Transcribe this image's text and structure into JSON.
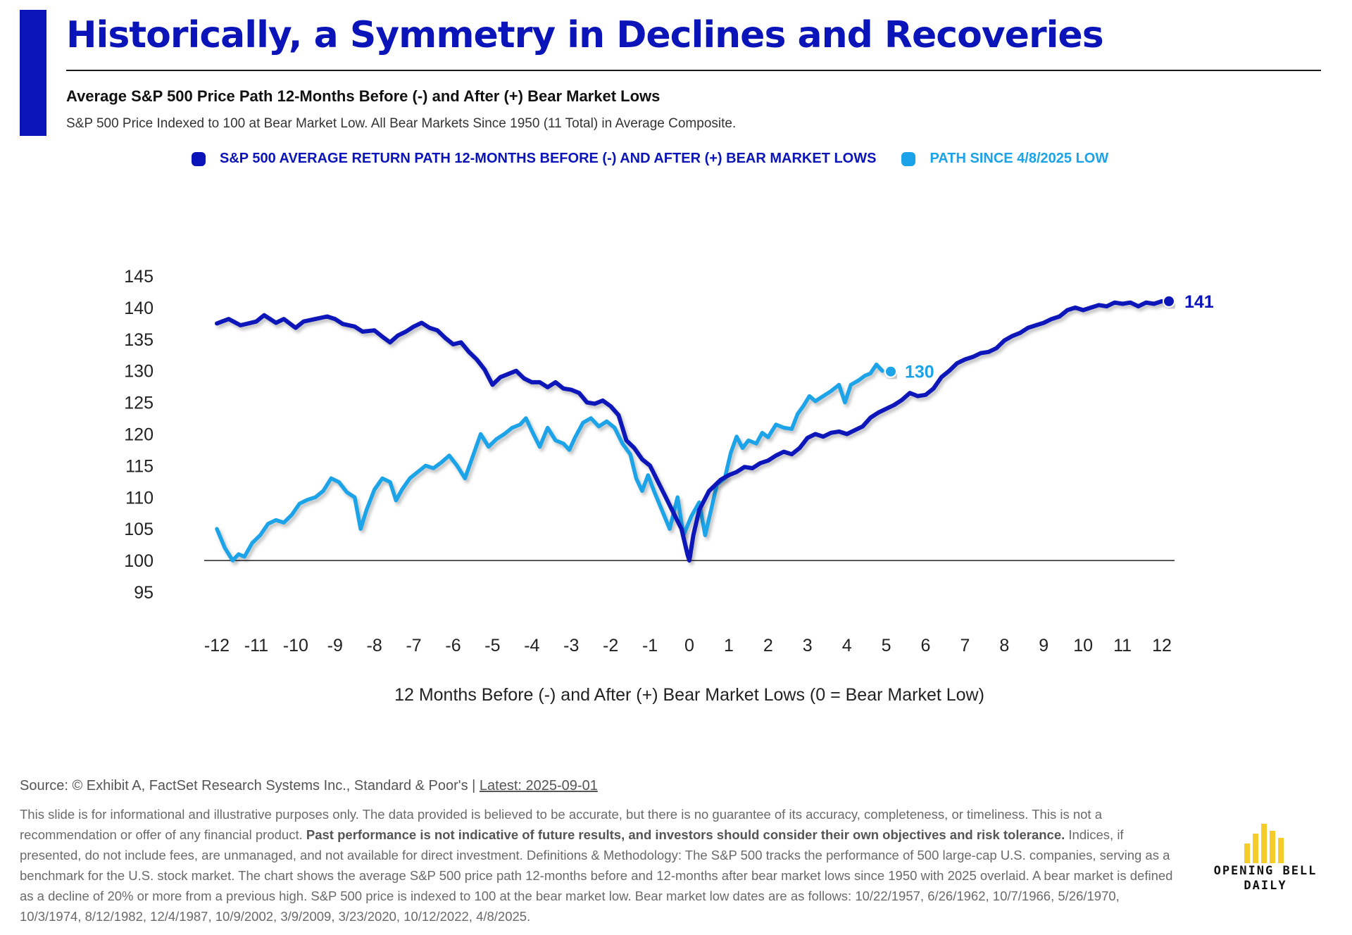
{
  "header": {
    "title": "Historically, a Symmetry in Declines and Recoveries",
    "subtitle": "Average S&P 500 Price Path 12-Months Before (-) and After (+) Bear Market Lows",
    "note": "S&P 500 Price Indexed to 100 at Bear Market Low. All Bear Markets Since 1950 (11 Total) in Average Composite."
  },
  "legend": {
    "average_label": "S&P 500 AVERAGE RETURN PATH 12-MONTHS BEFORE (-) AND AFTER (+) BEAR MARKET LOWS",
    "current_label": "PATH SINCE 4/8/2025 LOW"
  },
  "colors": {
    "accent": "#0a14b8",
    "average_series": "#0a14b8",
    "current_series": "#1aa3e8"
  },
  "chart_data": {
    "type": "line",
    "title": "",
    "xlabel": "12 Months Before (-) and After (+) Bear Market Lows (0 = Bear Market Low)",
    "ylabel": "",
    "xlim": [
      -12,
      12
    ],
    "ylim": [
      95,
      145
    ],
    "x_ticks": [
      "-12",
      "-11",
      "-10",
      "-9",
      "-8",
      "-7",
      "-6",
      "-5",
      "-4",
      "-3",
      "-2",
      "-1",
      "0",
      "1",
      "2",
      "3",
      "4",
      "5",
      "6",
      "7",
      "8",
      "9",
      "10",
      "11",
      "12"
    ],
    "y_ticks": [
      "145",
      "140",
      "135",
      "130",
      "125",
      "120",
      "115",
      "110",
      "105",
      "100",
      "95"
    ],
    "reference_line": 100,
    "grid": false,
    "legend_position": "top",
    "series": [
      {
        "name": "S&P 500 AVERAGE RETURN PATH 12-MONTHS BEFORE (-) AND AFTER (+) BEAR MARKET LOWS",
        "color": "#0a14b8",
        "end_label": "141",
        "points": [
          [
            -12,
            137.5
          ],
          [
            -11.7,
            138.2
          ],
          [
            -11.4,
            137.2
          ],
          [
            -11,
            137.8
          ],
          [
            -10.8,
            138.8
          ],
          [
            -10.5,
            137.6
          ],
          [
            -10.3,
            138.2
          ],
          [
            -10,
            136.8
          ],
          [
            -9.8,
            137.8
          ],
          [
            -9.5,
            138.2
          ],
          [
            -9.2,
            138.6
          ],
          [
            -9,
            138.2
          ],
          [
            -8.8,
            137.4
          ],
          [
            -8.5,
            137.0
          ],
          [
            -8.3,
            136.2
          ],
          [
            -8,
            136.4
          ],
          [
            -7.8,
            135.4
          ],
          [
            -7.6,
            134.5
          ],
          [
            -7.4,
            135.6
          ],
          [
            -7.2,
            136.2
          ],
          [
            -7,
            137.0
          ],
          [
            -6.8,
            137.6
          ],
          [
            -6.6,
            136.8
          ],
          [
            -6.4,
            136.4
          ],
          [
            -6.2,
            135.2
          ],
          [
            -6,
            134.2
          ],
          [
            -5.8,
            134.5
          ],
          [
            -5.6,
            133.0
          ],
          [
            -5.4,
            131.8
          ],
          [
            -5.2,
            130.2
          ],
          [
            -5,
            127.8
          ],
          [
            -4.8,
            129.0
          ],
          [
            -4.6,
            129.5
          ],
          [
            -4.4,
            130.0
          ],
          [
            -4.2,
            128.8
          ],
          [
            -4,
            128.2
          ],
          [
            -3.8,
            128.2
          ],
          [
            -3.6,
            127.4
          ],
          [
            -3.4,
            128.2
          ],
          [
            -3.2,
            127.2
          ],
          [
            -3,
            127.0
          ],
          [
            -2.8,
            126.5
          ],
          [
            -2.6,
            125.0
          ],
          [
            -2.4,
            124.8
          ],
          [
            -2.2,
            125.3
          ],
          [
            -2,
            124.4
          ],
          [
            -1.8,
            123.0
          ],
          [
            -1.6,
            119.0
          ],
          [
            -1.4,
            117.8
          ],
          [
            -1.2,
            116.0
          ],
          [
            -1,
            115.0
          ],
          [
            -0.8,
            112.5
          ],
          [
            -0.6,
            110.0
          ],
          [
            -0.4,
            107.5
          ],
          [
            -0.2,
            105.0
          ],
          [
            -0.05,
            101.0
          ],
          [
            0,
            100
          ],
          [
            0.1,
            104.0
          ],
          [
            0.25,
            108.0
          ],
          [
            0.5,
            111.0
          ],
          [
            0.8,
            112.8
          ],
          [
            1,
            113.5
          ],
          [
            1.2,
            114.0
          ],
          [
            1.4,
            114.8
          ],
          [
            1.6,
            114.6
          ],
          [
            1.8,
            115.4
          ],
          [
            2,
            115.8
          ],
          [
            2.2,
            116.6
          ],
          [
            2.4,
            117.2
          ],
          [
            2.6,
            116.8
          ],
          [
            2.8,
            117.8
          ],
          [
            3,
            119.4
          ],
          [
            3.2,
            120.0
          ],
          [
            3.4,
            119.6
          ],
          [
            3.6,
            120.2
          ],
          [
            3.8,
            120.4
          ],
          [
            4,
            120.0
          ],
          [
            4.2,
            120.6
          ],
          [
            4.4,
            121.2
          ],
          [
            4.6,
            122.6
          ],
          [
            4.8,
            123.4
          ],
          [
            5,
            124.0
          ],
          [
            5.2,
            124.6
          ],
          [
            5.4,
            125.4
          ],
          [
            5.6,
            126.5
          ],
          [
            5.8,
            126.0
          ],
          [
            6,
            126.2
          ],
          [
            6.2,
            127.2
          ],
          [
            6.4,
            129.0
          ],
          [
            6.6,
            130.0
          ],
          [
            6.8,
            131.2
          ],
          [
            7,
            131.8
          ],
          [
            7.2,
            132.2
          ],
          [
            7.4,
            132.8
          ],
          [
            7.6,
            133.0
          ],
          [
            7.8,
            133.6
          ],
          [
            8,
            134.8
          ],
          [
            8.2,
            135.5
          ],
          [
            8.4,
            136.0
          ],
          [
            8.6,
            136.8
          ],
          [
            8.8,
            137.2
          ],
          [
            9,
            137.6
          ],
          [
            9.2,
            138.2
          ],
          [
            9.4,
            138.6
          ],
          [
            9.6,
            139.6
          ],
          [
            9.8,
            140.0
          ],
          [
            10,
            139.6
          ],
          [
            10.2,
            140.0
          ],
          [
            10.4,
            140.4
          ],
          [
            10.6,
            140.2
          ],
          [
            10.8,
            140.8
          ],
          [
            11,
            140.6
          ],
          [
            11.2,
            140.8
          ],
          [
            11.4,
            140.2
          ],
          [
            11.6,
            140.8
          ],
          [
            11.8,
            140.6
          ],
          [
            12,
            141
          ]
        ]
      },
      {
        "name": "PATH SINCE 4/8/2025 LOW",
        "color": "#1aa3e8",
        "end_label": "130",
        "points": [
          [
            -12,
            105.0
          ],
          [
            -11.8,
            102.0
          ],
          [
            -11.6,
            100.0
          ],
          [
            -11.45,
            101.0
          ],
          [
            -11.3,
            100.6
          ],
          [
            -11.1,
            102.8
          ],
          [
            -10.9,
            104.0
          ],
          [
            -10.7,
            105.8
          ],
          [
            -10.5,
            106.4
          ],
          [
            -10.3,
            106.0
          ],
          [
            -10.1,
            107.2
          ],
          [
            -9.9,
            109.0
          ],
          [
            -9.7,
            109.6
          ],
          [
            -9.5,
            110.0
          ],
          [
            -9.3,
            111.0
          ],
          [
            -9.1,
            113.0
          ],
          [
            -8.9,
            112.4
          ],
          [
            -8.7,
            110.8
          ],
          [
            -8.5,
            110.0
          ],
          [
            -8.35,
            105.0
          ],
          [
            -8.2,
            108.0
          ],
          [
            -8.0,
            111.2
          ],
          [
            -7.8,
            113.0
          ],
          [
            -7.6,
            112.4
          ],
          [
            -7.45,
            109.5
          ],
          [
            -7.3,
            111.2
          ],
          [
            -7.1,
            113.0
          ],
          [
            -6.9,
            114.0
          ],
          [
            -6.7,
            115.0
          ],
          [
            -6.5,
            114.6
          ],
          [
            -6.3,
            115.5
          ],
          [
            -6.1,
            116.6
          ],
          [
            -5.9,
            115.0
          ],
          [
            -5.7,
            113.0
          ],
          [
            -5.5,
            116.5
          ],
          [
            -5.3,
            120.0
          ],
          [
            -5.1,
            118.0
          ],
          [
            -4.9,
            119.2
          ],
          [
            -4.7,
            120.0
          ],
          [
            -4.5,
            121.0
          ],
          [
            -4.3,
            121.5
          ],
          [
            -4.15,
            122.5
          ],
          [
            -4.0,
            120.5
          ],
          [
            -3.8,
            118.0
          ],
          [
            -3.6,
            121.0
          ],
          [
            -3.4,
            119.0
          ],
          [
            -3.2,
            118.5
          ],
          [
            -3.05,
            117.5
          ],
          [
            -2.9,
            119.5
          ],
          [
            -2.7,
            121.8
          ],
          [
            -2.5,
            122.5
          ],
          [
            -2.3,
            121.2
          ],
          [
            -2.1,
            122.0
          ],
          [
            -1.9,
            121.0
          ],
          [
            -1.7,
            118.5
          ],
          [
            -1.5,
            116.8
          ],
          [
            -1.35,
            113.0
          ],
          [
            -1.2,
            111.0
          ],
          [
            -1.05,
            113.5
          ],
          [
            -0.9,
            111.0
          ],
          [
            -0.7,
            108.0
          ],
          [
            -0.5,
            105.0
          ],
          [
            -0.3,
            110.0
          ],
          [
            -0.15,
            104.0
          ],
          [
            0.05,
            107.0
          ],
          [
            0.25,
            109.2
          ],
          [
            0.4,
            104.0
          ],
          [
            0.55,
            108.0
          ],
          [
            0.7,
            112.0
          ],
          [
            0.9,
            113.0
          ],
          [
            1.05,
            117.0
          ],
          [
            1.2,
            119.6
          ],
          [
            1.35,
            117.8
          ],
          [
            1.5,
            119.0
          ],
          [
            1.7,
            118.5
          ],
          [
            1.85,
            120.2
          ],
          [
            2.0,
            119.5
          ],
          [
            2.2,
            121.5
          ],
          [
            2.4,
            121.0
          ],
          [
            2.6,
            120.8
          ],
          [
            2.75,
            123.2
          ],
          [
            2.9,
            124.5
          ],
          [
            3.05,
            126.0
          ],
          [
            3.2,
            125.2
          ],
          [
            3.4,
            126.0
          ],
          [
            3.6,
            126.8
          ],
          [
            3.8,
            127.8
          ],
          [
            3.95,
            125.0
          ],
          [
            4.1,
            127.8
          ],
          [
            4.3,
            128.5
          ],
          [
            4.45,
            129.2
          ],
          [
            4.6,
            129.6
          ],
          [
            4.75,
            131.0
          ],
          [
            4.9,
            130.0
          ]
        ]
      }
    ]
  },
  "footer": {
    "source_prefix": "Source: © Exhibit A, FactSet Research Systems Inc., Standard & Poor's | ",
    "latest": "Latest: 2025-09-01",
    "disclaimer_1": "This slide is for informational and illustrative purposes only. The data provided is believed to be accurate, but there is no guarantee of its accuracy, completeness, or timeliness. This is not a recommendation or offer of any financial product. ",
    "disclaimer_bold": "Past performance is not indicative of future results, and investors should consider their own objectives and risk tolerance.",
    "disclaimer_2": " Indices, if presented, do not include fees, are unmanaged, and not available for direct investment. Definitions & Methodology: The S&P 500 tracks the performance of 500 large-cap U.S. companies, serving as a benchmark for the U.S. stock market. The chart shows the average S&P 500 price path 12-months before and 12-months after bear market lows since 1950 with 2025 overlaid. A bear market is defined as a decline of 20% or more from a previous high. S&P 500 price is indexed to 100 at the bear market low. Bear market low dates are as follows: 10/22/1957, 6/26/1962, 10/7/1966, 5/26/1970, 10/3/1974, 8/12/1982, 12/4/1987, 10/9/2002, 3/9/2009, 3/23/2020, 10/12/2022, 4/8/2025."
  },
  "logo": {
    "line1": "OPENING BELL",
    "line2": "DAILY",
    "color": "#f5cc2a"
  }
}
